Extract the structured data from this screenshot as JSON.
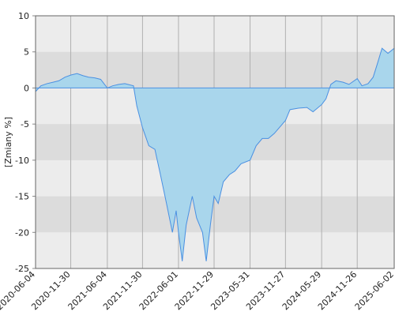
{
  "chart_data": {
    "type": "area",
    "y_label": "[Zmiany %]",
    "x": [
      "2020-06-04",
      "2020-07-01",
      "2020-08-01",
      "2020-09-01",
      "2020-10-01",
      "2020-11-01",
      "2020-12-01",
      "2021-01-01",
      "2021-02-01",
      "2021-03-01",
      "2021-04-01",
      "2021-05-01",
      "2021-06-04",
      "2021-07-01",
      "2021-08-01",
      "2021-09-01",
      "2021-10-15",
      "2021-11-01",
      "2021-11-30",
      "2022-01-01",
      "2022-02-01",
      "2022-03-01",
      "2022-04-01",
      "2022-05-01",
      "2022-05-20",
      "2022-06-01",
      "2022-06-20",
      "2022-07-10",
      "2022-08-10",
      "2022-09-01",
      "2022-10-01",
      "2022-10-20",
      "2022-11-10",
      "2022-11-29",
      "2022-12-20",
      "2023-01-15",
      "2023-02-15",
      "2023-03-15",
      "2023-04-15",
      "2023-05-31",
      "2023-07-01",
      "2023-08-01",
      "2023-09-01",
      "2023-10-01",
      "2023-11-27",
      "2023-12-20",
      "2024-02-01",
      "2024-03-15",
      "2024-04-15",
      "2024-05-29",
      "2024-06-20",
      "2024-07-15",
      "2024-08-10",
      "2024-09-15",
      "2024-10-15",
      "2024-11-26",
      "2024-12-20",
      "2025-01-20",
      "2025-02-15",
      "2025-03-10",
      "2025-04-01",
      "2025-05-01",
      "2025-06-02"
    ],
    "series": [
      {
        "color": "#4a90e2",
        "fill": "#a9d6ec",
        "values": [
          -0.5,
          0.3,
          0.6,
          0.8,
          1.0,
          1.5,
          1.8,
          2.0,
          1.7,
          1.5,
          1.4,
          1.2,
          0.0,
          0.3,
          0.5,
          0.6,
          0.3,
          -2.5,
          -5.5,
          -8,
          -8.5,
          -12,
          -16,
          -20,
          -17,
          -20,
          -24,
          -19,
          -15,
          -18,
          -20,
          -24,
          -19,
          -15,
          -16,
          -13,
          -12,
          -11.5,
          -10.5,
          -10,
          -8,
          -7,
          -7,
          -6.3,
          -4.5,
          -3,
          -2.8,
          -2.7,
          -3.3,
          -2.3,
          -1.5,
          0.5,
          1.0,
          0.8,
          0.5,
          1.3,
          0.3,
          0.6,
          1.5,
          3.5,
          5.5,
          4.8,
          5.5
        ]
      }
    ],
    "xlim": [
      "2020-06-04",
      "2025-06-02"
    ],
    "xticks": [
      "2020-06-04",
      "2020-11-30",
      "2021-06-04",
      "2021-11-30",
      "2022-06-01",
      "2022-11-29",
      "2023-05-31",
      "2023-11-27",
      "2024-05-29",
      "2024-11-26",
      "2025-06-02"
    ],
    "ylim": [
      -25,
      10
    ],
    "yticks": [
      10,
      5,
      0,
      -5,
      -10,
      -15,
      -20,
      -25
    ],
    "grid": true
  }
}
